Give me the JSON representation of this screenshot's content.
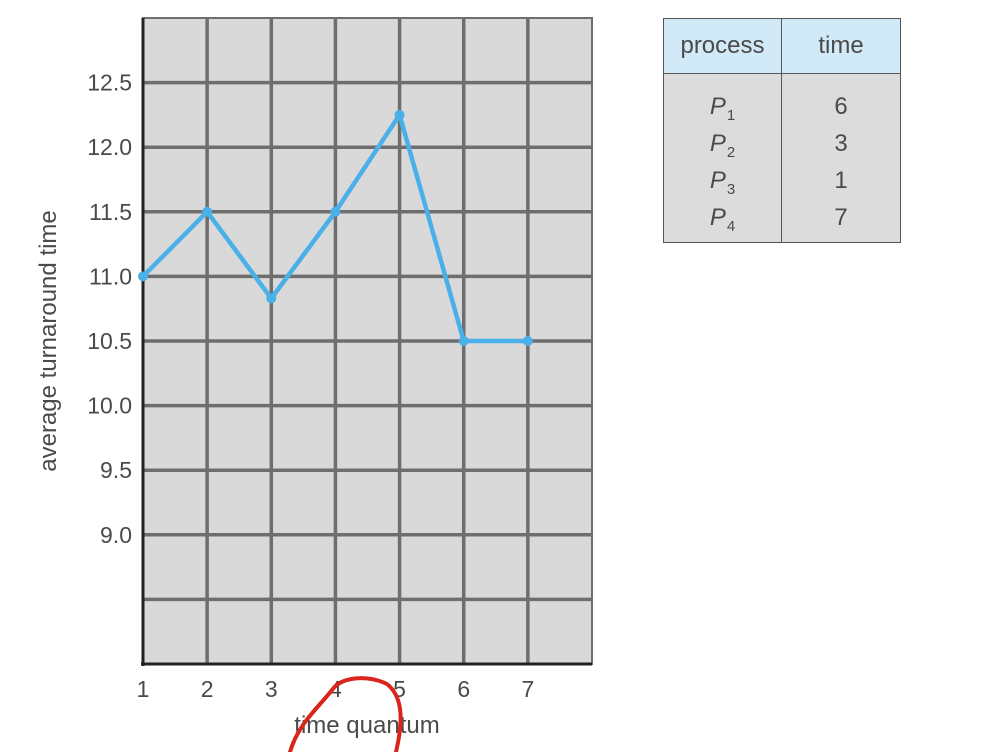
{
  "chart_data": {
    "type": "line",
    "title": "",
    "xlabel": "time quantum",
    "ylabel": "average turnaround time",
    "x": [
      1,
      2,
      3,
      4,
      5,
      6,
      7
    ],
    "y": [
      11.0,
      11.5,
      10.83,
      11.5,
      12.25,
      10.5,
      10.5
    ],
    "xticks": [
      "1",
      "2",
      "3",
      "4",
      "5",
      "6",
      "7"
    ],
    "yticks": [
      "9.0",
      "9.5",
      "10.0",
      "10.5",
      "11.0",
      "11.5",
      "12.0",
      "12.5"
    ],
    "xlim": [
      1,
      8
    ],
    "ylim": [
      8.0,
      13.0
    ],
    "grid": true,
    "line_color": "#4ab0e8",
    "plot_bg": "#d9d9d9",
    "grid_color": "#6e6e6e"
  },
  "process_table": {
    "headers": [
      "process",
      "time"
    ],
    "rows": [
      {
        "name": "P",
        "sub": "1",
        "time": "6"
      },
      {
        "name": "P",
        "sub": "2",
        "time": "3"
      },
      {
        "name": "P",
        "sub": "3",
        "time": "1"
      },
      {
        "name": "P",
        "sub": "4",
        "time": "7"
      }
    ],
    "header_bg": "#d2e9f7",
    "body_bg": "#dcdcdc"
  },
  "annotation": {
    "shape": "red-ellipse-circle",
    "color": "#d9261c"
  }
}
